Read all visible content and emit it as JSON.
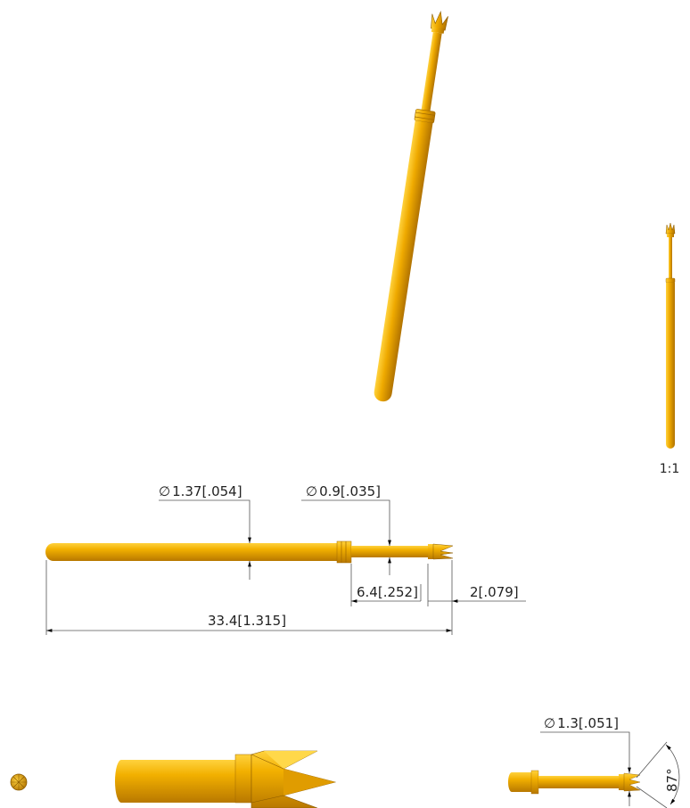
{
  "colors": {
    "gold": "#E9A400",
    "gold_light": "#FFCF3A",
    "gold_dark": "#A86F00",
    "dim_line": "#555555",
    "text": "#222222"
  },
  "scale_label": "1:1",
  "dimensions": {
    "barrel_diameter": {
      "symbol": "∅",
      "text": "1.37[.054]"
    },
    "plunger_diameter": {
      "symbol": "∅",
      "text": "0.9[.035]"
    },
    "plunger_length": "6.4[.252]",
    "tip_length": "2[.079]",
    "overall_length": "33.4[1.315]",
    "tip_diameter": {
      "symbol": "∅",
      "text": "1.3[.051]"
    },
    "tip_angle": "87°"
  }
}
